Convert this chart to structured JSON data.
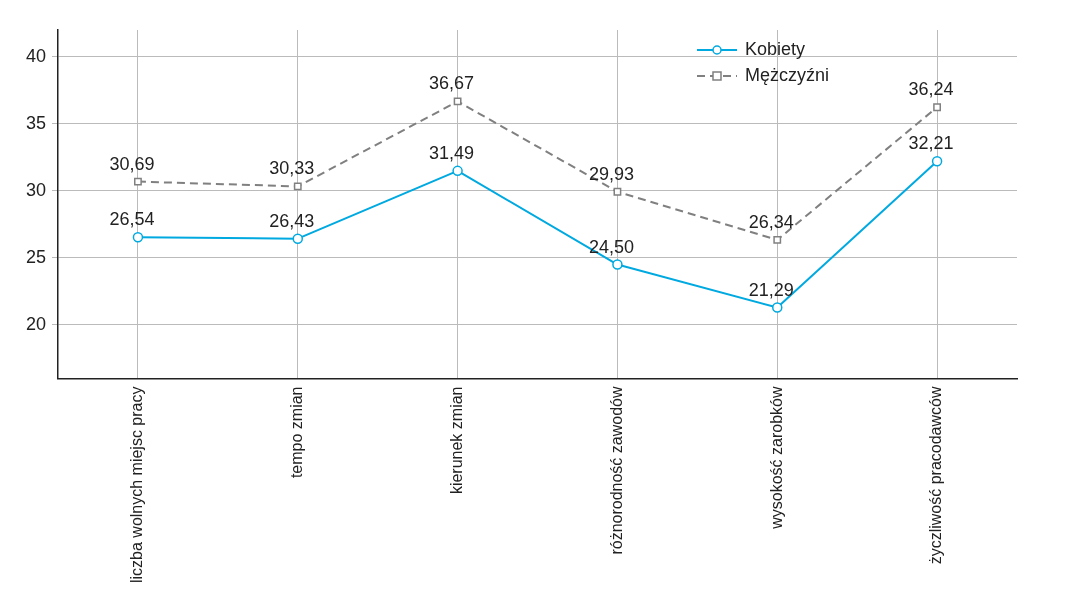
{
  "chart_data": {
    "type": "line",
    "categories": [
      "liczba wolnych miejsc pracy",
      "tempo zmian",
      "kierunek zmian",
      "różnorodność zawodów",
      "wysokość zarobków",
      "życzliwość pracodawców"
    ],
    "series": [
      {
        "name": "Kobiety",
        "color": "#00a9e0",
        "values": [
          26.54,
          26.43,
          31.49,
          24.5,
          21.29,
          32.21
        ],
        "value_labels": [
          "26,54",
          "26,43",
          "31,49",
          "24,50",
          "21,29",
          "32,21"
        ],
        "marker": "circle",
        "line_style": "solid"
      },
      {
        "name": "Mężczyźni",
        "color": "#808080",
        "values": [
          30.69,
          30.33,
          36.67,
          29.93,
          26.34,
          36.24
        ],
        "value_labels": [
          "30,69",
          "30,33",
          "36,67",
          "29,93",
          "26,34",
          "36,24"
        ],
        "marker": "square",
        "line_style": "dashed"
      }
    ],
    "ylim": [
      16,
      42
    ],
    "yticks": [
      20,
      25,
      30,
      35,
      40
    ],
    "grid": true,
    "legend": "top right"
  }
}
